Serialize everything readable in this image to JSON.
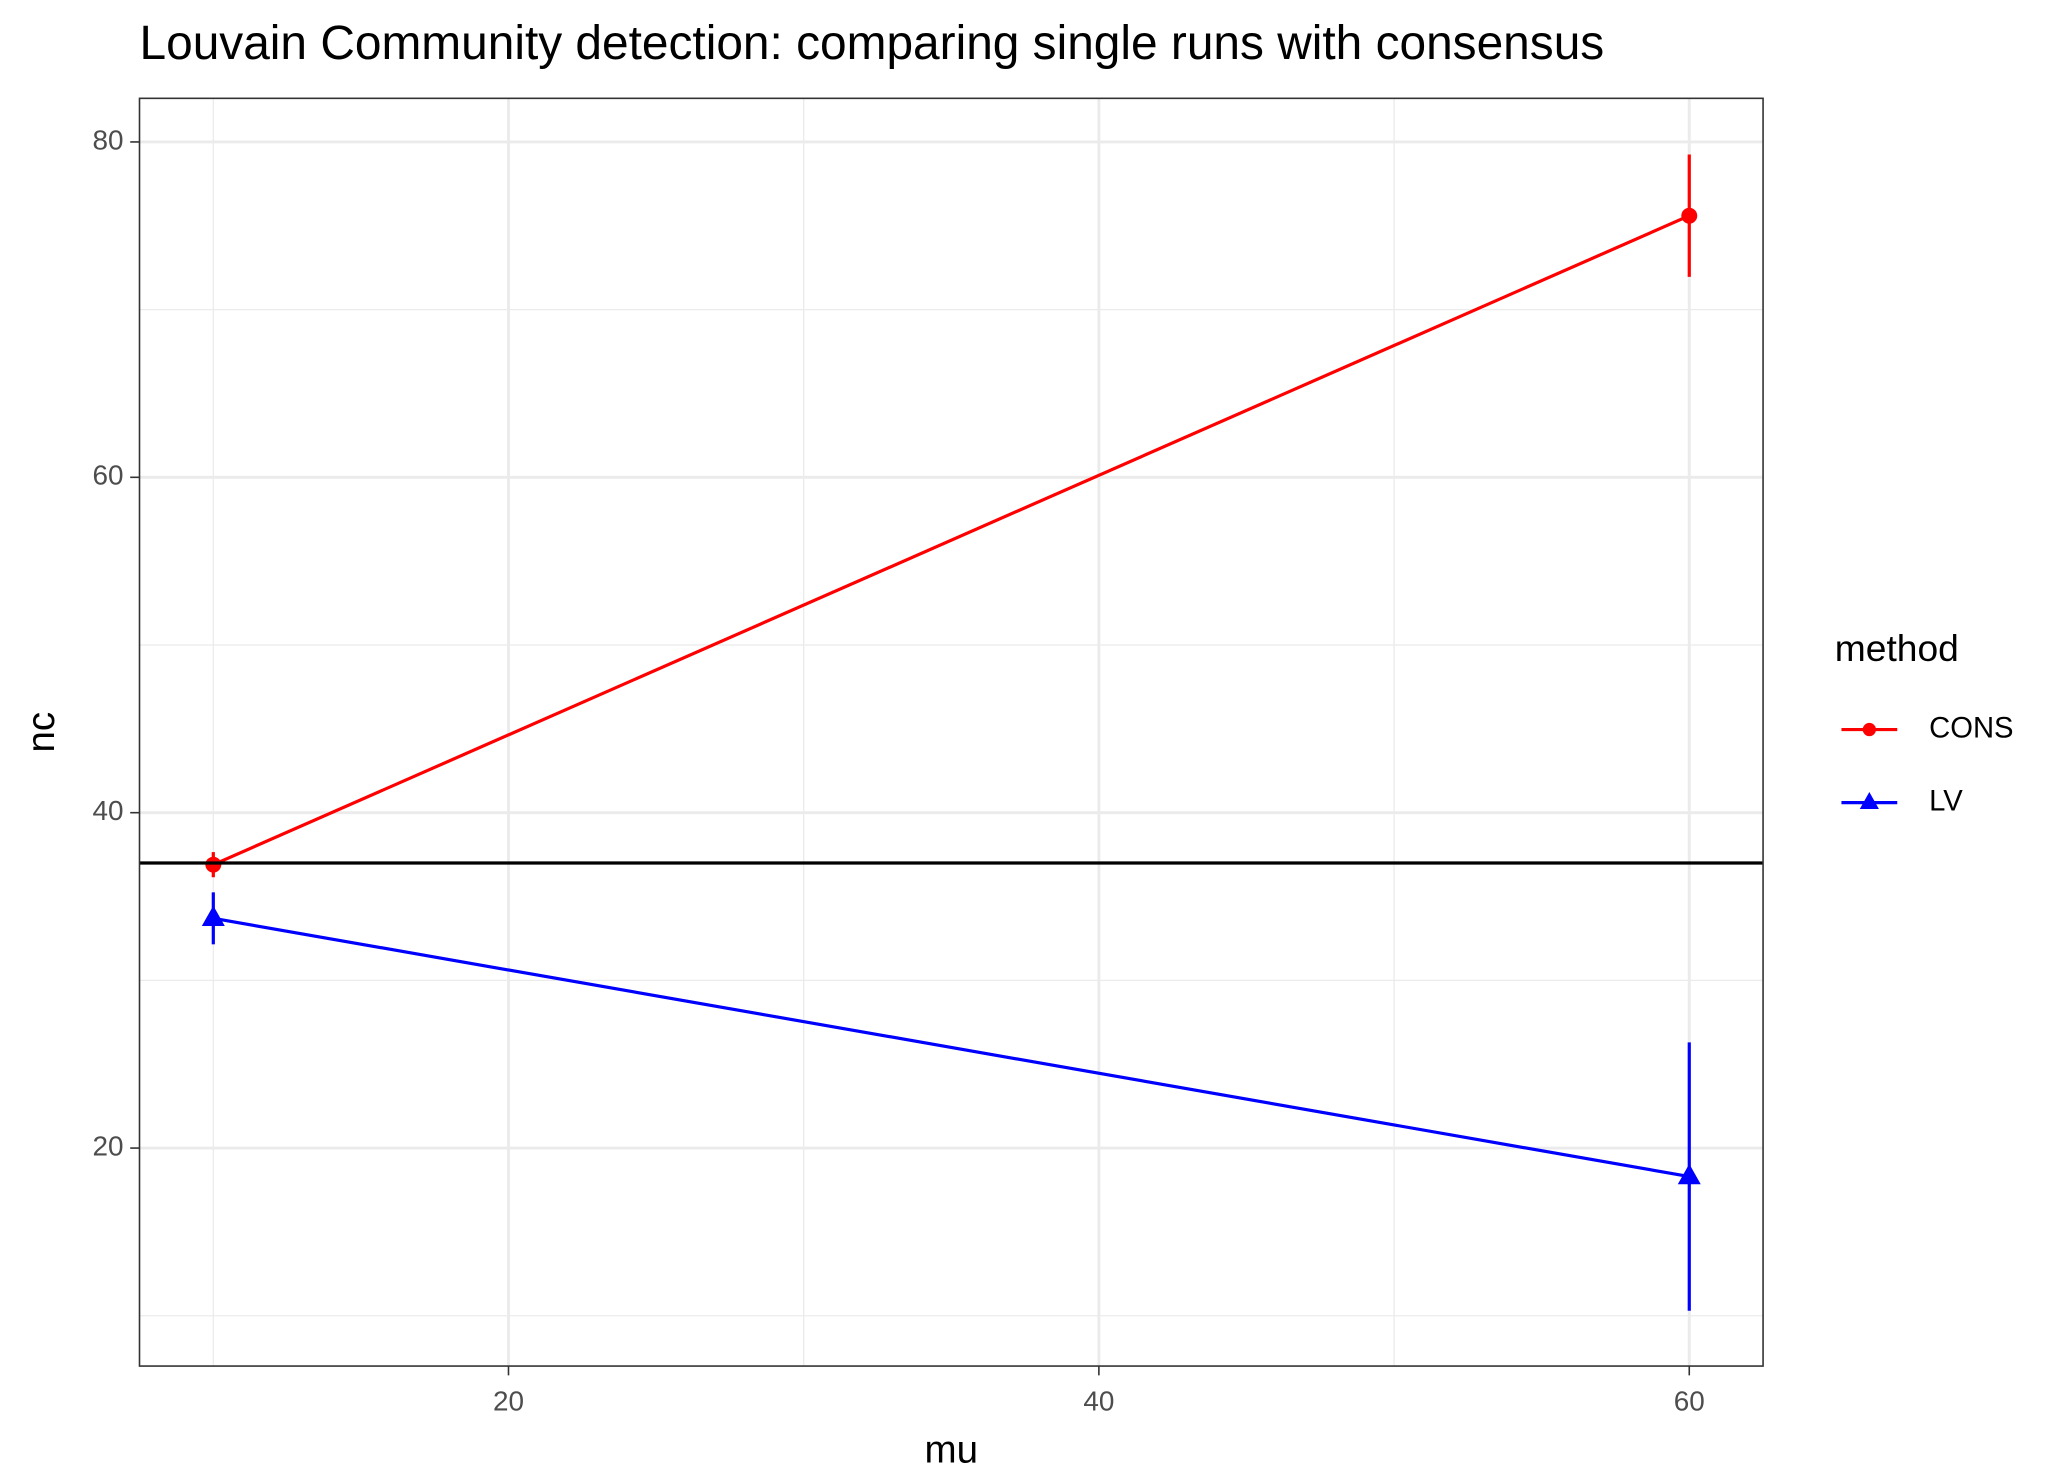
{
  "chart_data": {
    "type": "line",
    "title": "Louvain Community detection: comparing single runs with consensus",
    "x_label": "mu",
    "y_label": "nc",
    "x": [
      10,
      60
    ],
    "series": [
      {
        "name": "CONS",
        "color": "#ff0000",
        "marker": "circle",
        "values": [
          36.9,
          75.6
        ],
        "errors": [
          0.75,
          3.65
        ]
      },
      {
        "name": "LV",
        "color": "#0000ff",
        "marker": "triangle",
        "values": [
          33.7,
          18.3
        ],
        "errors": [
          1.55,
          8.0
        ]
      }
    ],
    "hline": 37,
    "xlim": [
      7.5,
      62.5
    ],
    "ylim": [
      7,
      82.6
    ],
    "xticks": [
      20,
      40,
      60
    ],
    "yticks": [
      20,
      40,
      60,
      80
    ],
    "x_minor_grid": [
      10,
      30,
      50
    ],
    "y_minor_grid": [
      10,
      30,
      50,
      70
    ],
    "grid": true,
    "legend_title": "method",
    "legend_position": "right"
  }
}
